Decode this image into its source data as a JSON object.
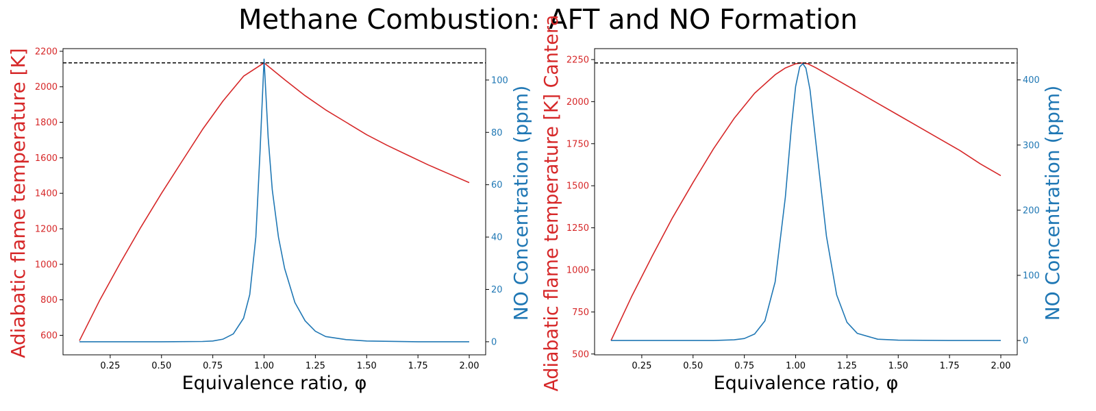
{
  "figure": {
    "title": "Methane Combustion: AFT and NO Formation"
  },
  "chart_data": [
    {
      "type": "line",
      "xlabel": "Equivalence ratio, φ",
      "ylabel_left": "Adiabatic flame temperature [K]",
      "ylabel_right": "NO Concentration (ppm)",
      "xlim": [
        0.02,
        2.08
      ],
      "ylim_left": [
        490,
        2215
      ],
      "ylim_right": [
        -5,
        112
      ],
      "xticks": [
        0.25,
        0.5,
        0.75,
        1.0,
        1.25,
        1.5,
        1.75,
        2.0
      ],
      "xtick_labels": [
        "0.25",
        "0.50",
        "0.75",
        "1.00",
        "1.25",
        "1.50",
        "1.75",
        "2.00"
      ],
      "yticks_left": [
        600,
        800,
        1000,
        1200,
        1400,
        1600,
        1800,
        2000,
        2200
      ],
      "yticks_right": [
        0,
        20,
        40,
        60,
        80,
        100
      ],
      "reference_line_left": 2135,
      "series": [
        {
          "axis": "left",
          "color": "#d62728",
          "x": [
            0.1,
            0.2,
            0.3,
            0.4,
            0.5,
            0.6,
            0.7,
            0.8,
            0.9,
            1.0,
            1.1,
            1.2,
            1.3,
            1.4,
            1.5,
            1.6,
            1.7,
            1.8,
            1.9,
            2.0
          ],
          "y": [
            570,
            800,
            1010,
            1210,
            1400,
            1580,
            1760,
            1920,
            2060,
            2135,
            2040,
            1950,
            1870,
            1800,
            1730,
            1670,
            1615,
            1560,
            1510,
            1460
          ]
        },
        {
          "axis": "right",
          "color": "#1f77b4",
          "x": [
            0.1,
            0.5,
            0.7,
            0.75,
            0.8,
            0.85,
            0.9,
            0.93,
            0.96,
            0.98,
            1.0,
            1.02,
            1.04,
            1.07,
            1.1,
            1.15,
            1.2,
            1.25,
            1.3,
            1.4,
            1.5,
            1.75,
            2.0
          ],
          "y": [
            0,
            0,
            0.1,
            0.3,
            1,
            3,
            9,
            18,
            40,
            72,
            108,
            78,
            58,
            40,
            28,
            15,
            8,
            4,
            2,
            0.8,
            0.3,
            0,
            0
          ]
        }
      ]
    },
    {
      "type": "line",
      "xlabel": "Equivalence ratio, φ",
      "ylabel_left": "Adiabatic flame temperature [K] Cantera",
      "ylabel_right": "NO Concentration (ppm)",
      "xlim": [
        0.02,
        2.08
      ],
      "ylim_left": [
        495,
        2315
      ],
      "ylim_right": [
        -22,
        448
      ],
      "xticks": [
        0.25,
        0.5,
        0.75,
        1.0,
        1.25,
        1.5,
        1.75,
        2.0
      ],
      "xtick_labels": [
        "0.25",
        "0.50",
        "0.75",
        "1.00",
        "1.25",
        "1.50",
        "1.75",
        "2.00"
      ],
      "yticks_left": [
        500,
        750,
        1000,
        1250,
        1500,
        1750,
        2000,
        2250
      ],
      "yticks_right": [
        0,
        100,
        200,
        300,
        400
      ],
      "reference_line_left": 2230,
      "series": [
        {
          "axis": "left",
          "color": "#d62728",
          "x": [
            0.1,
            0.2,
            0.3,
            0.4,
            0.5,
            0.6,
            0.7,
            0.8,
            0.9,
            0.95,
            1.0,
            1.03,
            1.06,
            1.1,
            1.2,
            1.3,
            1.4,
            1.5,
            1.6,
            1.7,
            1.8,
            1.9,
            2.0
          ],
          "y": [
            580,
            840,
            1080,
            1310,
            1520,
            1720,
            1900,
            2050,
            2160,
            2200,
            2225,
            2230,
            2225,
            2200,
            2130,
            2060,
            1990,
            1920,
            1850,
            1780,
            1710,
            1630,
            1560
          ]
        },
        {
          "axis": "right",
          "color": "#1f77b4",
          "x": [
            0.1,
            0.6,
            0.7,
            0.75,
            0.8,
            0.85,
            0.9,
            0.95,
            0.98,
            1.0,
            1.02,
            1.035,
            1.05,
            1.07,
            1.1,
            1.15,
            1.2,
            1.25,
            1.3,
            1.4,
            1.5,
            1.75,
            2.0
          ],
          "y": [
            0,
            0,
            1,
            3,
            10,
            30,
            90,
            220,
            330,
            390,
            420,
            425,
            418,
            385,
            300,
            160,
            70,
            28,
            11,
            2,
            0.5,
            0,
            0
          ]
        }
      ]
    }
  ]
}
